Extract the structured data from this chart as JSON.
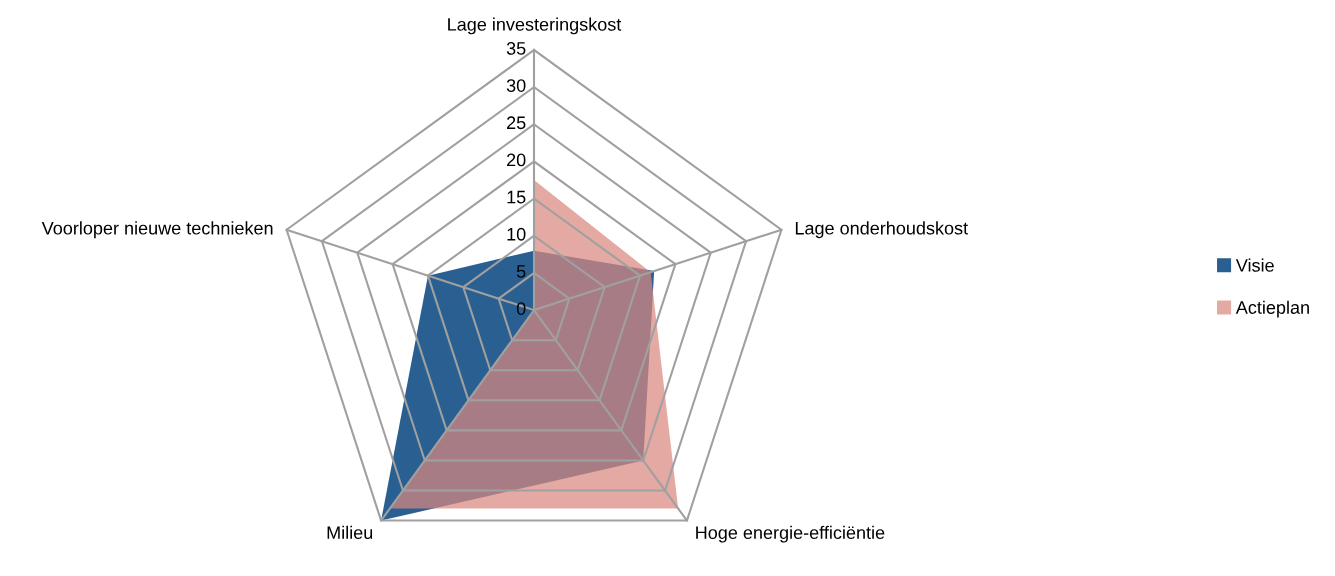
{
  "chart_data": {
    "type": "radar",
    "categories": [
      "Lage investeringskost",
      "Lage onderhoudskost",
      "Hoge energie-efficiëntie",
      "Milieu",
      "Voorloper nieuwe technieken"
    ],
    "series": [
      {
        "name": "Visie",
        "color": "#2a5f91",
        "values": [
          8,
          17,
          25,
          35,
          15
        ]
      },
      {
        "name": "Actieplan",
        "color": "#d98880",
        "values": [
          17.5,
          16.5,
          33,
          33,
          0
        ]
      }
    ],
    "ylim": [
      0,
      35
    ],
    "yticks": [
      0,
      5,
      10,
      15,
      20,
      25,
      30,
      35
    ],
    "grid": true,
    "legend": "right"
  }
}
